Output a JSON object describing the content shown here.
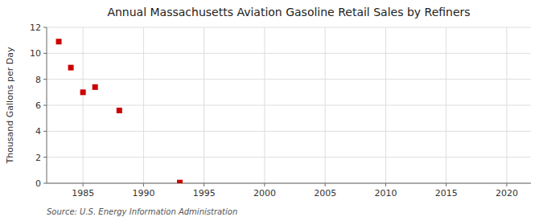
{
  "chart_data": {
    "type": "scatter",
    "title": "Annual Massachusetts Aviation Gasoline Retail Sales by Refiners",
    "ylabel": "Thousand Gallons per Day",
    "source": "Source: U.S. Energy Information Administration",
    "x": [
      1983,
      1984,
      1985,
      1986,
      1988,
      1993
    ],
    "values": [
      10.9,
      8.9,
      7.0,
      7.4,
      5.6,
      0.05
    ],
    "color": "#cc0000",
    "marker": "square",
    "grid": true,
    "xlim": [
      1982,
      2022
    ],
    "ylim": [
      0,
      12
    ],
    "xticks": [
      1985,
      1990,
      1995,
      2000,
      2005,
      2010,
      2015,
      2020
    ],
    "yticks": [
      0,
      2,
      4,
      6,
      8,
      10,
      12
    ]
  }
}
